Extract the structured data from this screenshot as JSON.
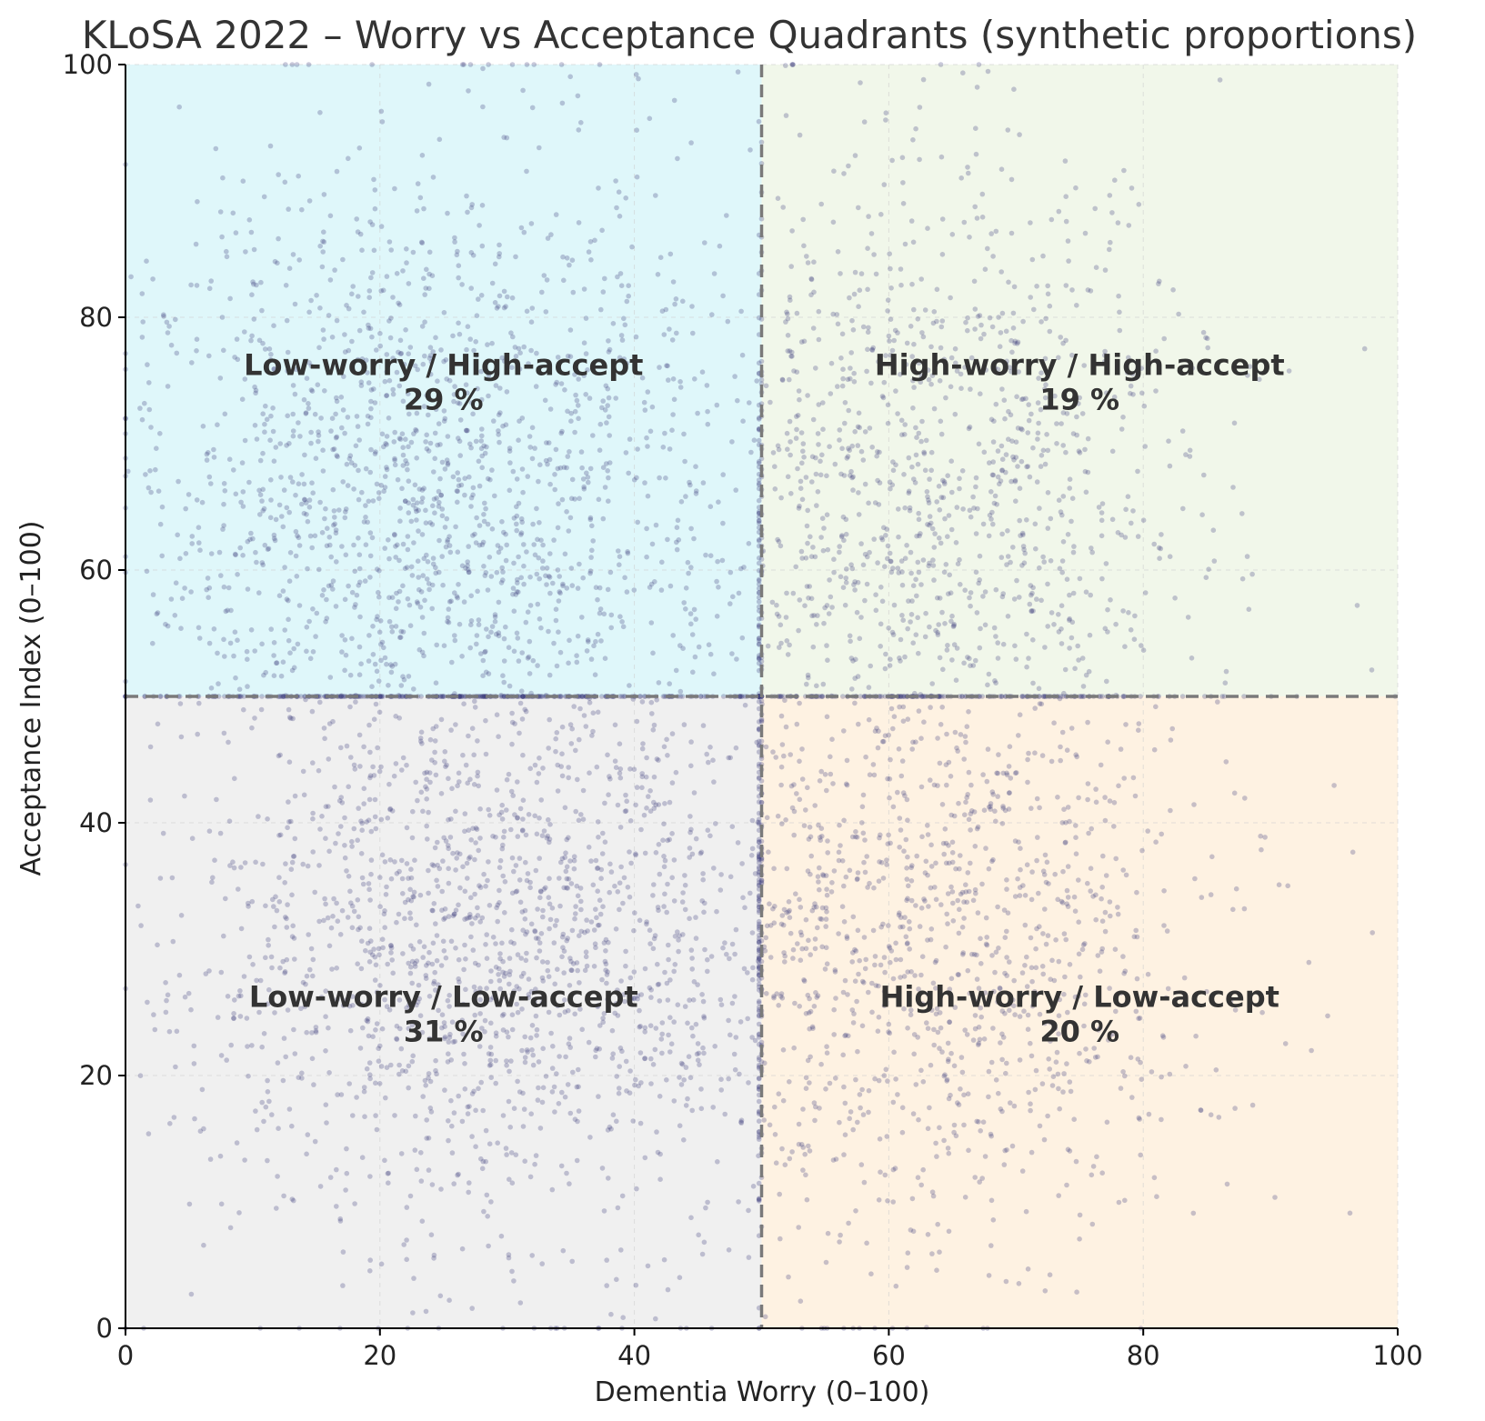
{
  "chart_data": {
    "type": "scatter",
    "title": "KLoSA 2022 – Worry vs Acceptance Quadrants (synthetic proportions)",
    "xlabel": "Dementia Worry (0–100)",
    "ylabel": "Acceptance Index (0–100)",
    "xlim": [
      0,
      100
    ],
    "ylim": [
      0,
      100
    ],
    "xticks": [
      0,
      20,
      40,
      60,
      80,
      100
    ],
    "yticks": [
      0,
      20,
      40,
      60,
      80,
      100
    ],
    "grid": true,
    "thresholds": {
      "x": 50,
      "y": 50
    },
    "point_color": "#3b3b7a",
    "quadrants": [
      {
        "name": "Low-worry / High-accept",
        "percent": "29 %",
        "proportion": 0.29,
        "x_range": [
          0,
          50
        ],
        "y_range": [
          50,
          100
        ],
        "color": "#dff7fa",
        "label_x": 25,
        "label_y": 75,
        "center": [
          25,
          66
        ],
        "spread": [
          14,
          13
        ]
      },
      {
        "name": "High-worry / High-accept",
        "percent": "19 %",
        "proportion": 0.19,
        "x_range": [
          50,
          100
        ],
        "y_range": [
          50,
          100
        ],
        "color": "#f1f7ea",
        "label_x": 75,
        "label_y": 75,
        "center": [
          62,
          66
        ],
        "spread": [
          11,
          13
        ]
      },
      {
        "name": "Low-worry / Low-accept",
        "percent": "31 %",
        "proportion": 0.31,
        "x_range": [
          0,
          50
        ],
        "y_range": [
          0,
          50
        ],
        "color": "#f0f0f0",
        "label_x": 25,
        "label_y": 25,
        "center": [
          30,
          32
        ],
        "spread": [
          13,
          13
        ]
      },
      {
        "name": "High-worry / Low-accept",
        "percent": "20 %",
        "proportion": 0.2,
        "x_range": [
          50,
          100
        ],
        "y_range": [
          0,
          50
        ],
        "color": "#fef2e2",
        "label_x": 75,
        "label_y": 25,
        "center": [
          62,
          32
        ],
        "spread": [
          12,
          13
        ]
      }
    ]
  }
}
